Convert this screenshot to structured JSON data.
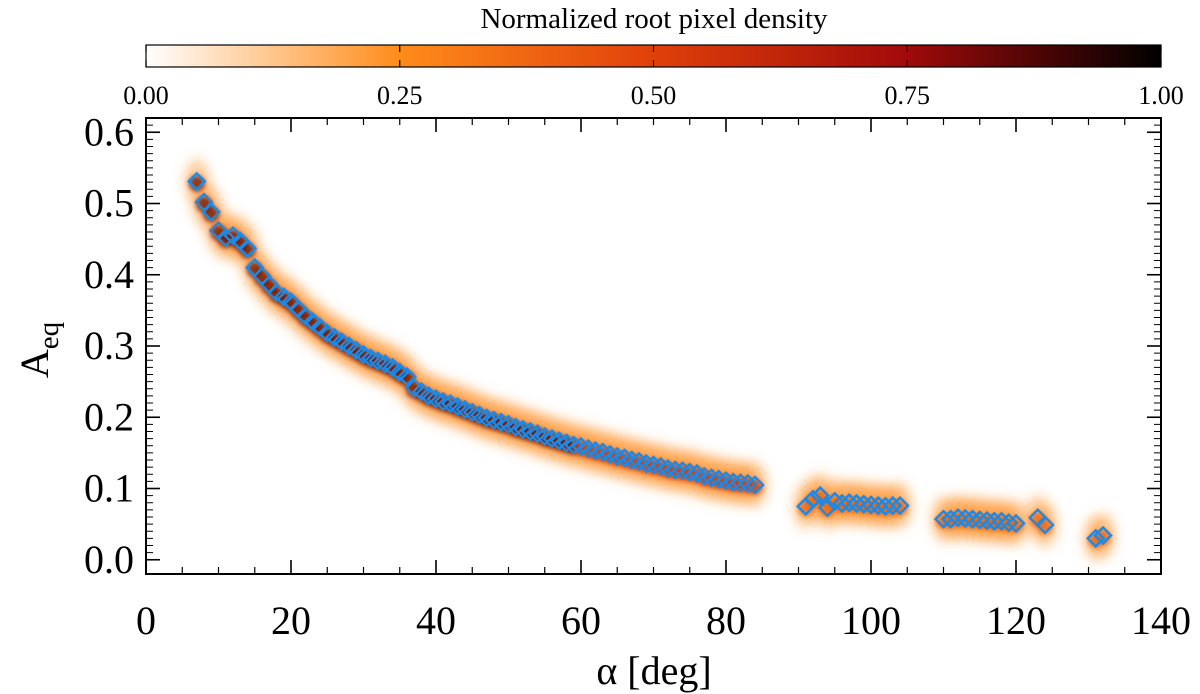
{
  "chart_data": {
    "type": "scatter",
    "title": "",
    "xlabel": "α [deg]",
    "ylabel_main": "A",
    "ylabel_sub": "eq",
    "xlim": [
      0,
      140
    ],
    "ylim": [
      -0.02,
      0.62
    ],
    "xticks": [
      0,
      20,
      40,
      60,
      80,
      100,
      120,
      140
    ],
    "xtick_labels": [
      "0",
      "20",
      "40",
      "60",
      "80",
      "100",
      "120",
      "140"
    ],
    "yticks": [
      0.0,
      0.1,
      0.2,
      0.3,
      0.4,
      0.5,
      0.6
    ],
    "ytick_labels": [
      "0.0",
      "0.1",
      "0.2",
      "0.3",
      "0.4",
      "0.5",
      "0.6"
    ],
    "colorbar": {
      "label": "Normalized root pixel density",
      "range": [
        0,
        1
      ],
      "ticks": [
        0.0,
        0.25,
        0.5,
        0.75,
        1.0
      ],
      "tick_labels": [
        "0.00",
        "0.25",
        "0.50",
        "0.75",
        "1.00"
      ],
      "colormap": [
        "#ffffff",
        "#ff8c1a",
        "#e0400a",
        "#a00a0a",
        "#000000"
      ]
    },
    "marker": {
      "shape": "diamond",
      "color": "#1e88e5"
    },
    "series": [
      {
        "values": [
          [
            7.0,
            0.531
          ],
          [
            8.0,
            0.502
          ],
          [
            9.0,
            0.488
          ],
          [
            10.0,
            0.462
          ],
          [
            11.0,
            0.452
          ],
          [
            12.0,
            0.455
          ],
          [
            13.0,
            0.447
          ],
          [
            14.0,
            0.437
          ],
          [
            15.0,
            0.41
          ],
          [
            16.0,
            0.398
          ],
          [
            17.0,
            0.386
          ],
          [
            18.0,
            0.375
          ],
          [
            19.0,
            0.369
          ],
          [
            20.0,
            0.362
          ],
          [
            21.0,
            0.352
          ],
          [
            22.0,
            0.342
          ],
          [
            23.0,
            0.334
          ],
          [
            24.0,
            0.326
          ],
          [
            25.0,
            0.318
          ],
          [
            26.0,
            0.312
          ],
          [
            27.0,
            0.306
          ],
          [
            28.0,
            0.3
          ],
          [
            29.0,
            0.294
          ],
          [
            30.0,
            0.288
          ],
          [
            31.0,
            0.283
          ],
          [
            32.0,
            0.279
          ],
          [
            33.0,
            0.275
          ],
          [
            34.0,
            0.27
          ],
          [
            35.0,
            0.263
          ],
          [
            36.0,
            0.257
          ],
          [
            37.0,
            0.241
          ],
          [
            38.0,
            0.236
          ],
          [
            39.0,
            0.23
          ],
          [
            40.0,
            0.226
          ],
          [
            41.0,
            0.222
          ],
          [
            42.0,
            0.219
          ],
          [
            43.0,
            0.215
          ],
          [
            44.0,
            0.211
          ],
          [
            45.0,
            0.207
          ],
          [
            46.0,
            0.203
          ],
          [
            47.0,
            0.199
          ],
          [
            48.0,
            0.196
          ],
          [
            49.0,
            0.193
          ],
          [
            50.0,
            0.19
          ],
          [
            51.0,
            0.186
          ],
          [
            52.0,
            0.183
          ],
          [
            53.0,
            0.18
          ],
          [
            54.0,
            0.177
          ],
          [
            55.0,
            0.173
          ],
          [
            56.0,
            0.17
          ],
          [
            57.0,
            0.167
          ],
          [
            58.0,
            0.164
          ],
          [
            59.0,
            0.161
          ],
          [
            60.0,
            0.159
          ],
          [
            61.0,
            0.156
          ],
          [
            62.0,
            0.153
          ],
          [
            63.0,
            0.151
          ],
          [
            64.0,
            0.148
          ],
          [
            65.0,
            0.145
          ],
          [
            66.0,
            0.143
          ],
          [
            67.0,
            0.14
          ],
          [
            68.0,
            0.138
          ],
          [
            69.0,
            0.135
          ],
          [
            70.0,
            0.133
          ],
          [
            71.0,
            0.131
          ],
          [
            72.0,
            0.128
          ],
          [
            73.0,
            0.126
          ],
          [
            74.0,
            0.125
          ],
          [
            75.0,
            0.123
          ],
          [
            76.0,
            0.121
          ],
          [
            77.0,
            0.117
          ],
          [
            78.0,
            0.115
          ],
          [
            79.0,
            0.113
          ],
          [
            80.0,
            0.111
          ],
          [
            81.0,
            0.109
          ],
          [
            82.0,
            0.108
          ],
          [
            83.0,
            0.107
          ],
          [
            84.0,
            0.105
          ],
          [
            91.0,
            0.075
          ],
          [
            92.0,
            0.085
          ],
          [
            93.0,
            0.09
          ],
          [
            94.0,
            0.073
          ],
          [
            95.0,
            0.082
          ],
          [
            96.0,
            0.079
          ],
          [
            97.0,
            0.08
          ],
          [
            98.0,
            0.079
          ],
          [
            99.0,
            0.078
          ],
          [
            100.0,
            0.077
          ],
          [
            101.0,
            0.076
          ],
          [
            102.0,
            0.075
          ],
          [
            103.0,
            0.076
          ],
          [
            104.0,
            0.076
          ],
          [
            110.0,
            0.057
          ],
          [
            111.0,
            0.057
          ],
          [
            112.0,
            0.059
          ],
          [
            113.0,
            0.058
          ],
          [
            114.0,
            0.057
          ],
          [
            115.0,
            0.056
          ],
          [
            116.0,
            0.055
          ],
          [
            117.0,
            0.054
          ],
          [
            118.0,
            0.054
          ],
          [
            119.0,
            0.052
          ],
          [
            120.0,
            0.051
          ],
          [
            123.0,
            0.059
          ],
          [
            124.0,
            0.049
          ],
          [
            131.0,
            0.03
          ],
          [
            132.0,
            0.034
          ]
        ]
      }
    ]
  }
}
